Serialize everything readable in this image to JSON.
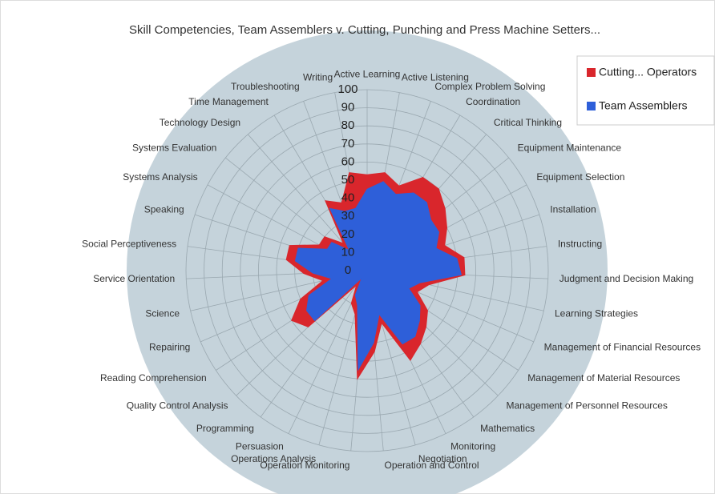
{
  "chart_data": {
    "type": "radar",
    "title": "Skill Competencies, Team Assemblers v. Cutting, Punching and Press Machine Setters...",
    "categories": [
      "Active Learning",
      "Active Listening",
      "Complex Problem Solving",
      "Coordination",
      "Critical Thinking",
      "Equipment Maintenance",
      "Equipment Selection",
      "Installation",
      "Instructing",
      "Judgment and Decision Making",
      "Learning Strategies",
      "Management of Financial Resources",
      "Management of Material Resources",
      "Management of Personnel Resources",
      "Mathematics",
      "Monitoring",
      "Negotiation",
      "Operation and Control",
      "Operation Monitoring",
      "Operations Analysis",
      "Persuasion",
      "Programming",
      "Quality Control Analysis",
      "Reading Comprehension",
      "Repairing",
      "Science",
      "Service Orientation",
      "Social Perceptiveness",
      "Speaking",
      "Systems Analysis",
      "Systems Evaluation",
      "Technology Design",
      "Time Management",
      "Troubleshooting",
      "Writing"
    ],
    "series": [
      {
        "name": "Cutting... Operators",
        "color": "#d9262c",
        "values": [
          53,
          55,
          50,
          60,
          60,
          55,
          50,
          45,
          54,
          54,
          35,
          30,
          40,
          45,
          50,
          55,
          30,
          45,
          60,
          25,
          20,
          10,
          45,
          50,
          40,
          25,
          35,
          45,
          45,
          30,
          30,
          20,
          45,
          40,
          55
        ]
      },
      {
        "name": "Team Assemblers",
        "color": "#2e5fd9",
        "values": [
          45,
          50,
          45,
          50,
          50,
          45,
          45,
          40,
          50,
          52,
          30,
          25,
          35,
          40,
          45,
          45,
          25,
          40,
          55,
          20,
          15,
          5,
          40,
          40,
          35,
          20,
          30,
          40,
          40,
          25,
          25,
          15,
          40,
          35,
          35
        ]
      }
    ],
    "ylim": [
      0,
      100
    ],
    "yticks": [
      0,
      10,
      20,
      30,
      40,
      50,
      60,
      70,
      80,
      90,
      100
    ],
    "grid": true,
    "legend": "top-right"
  }
}
